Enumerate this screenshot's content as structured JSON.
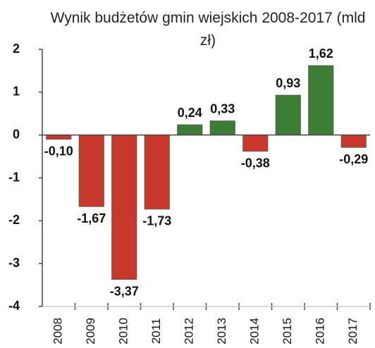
{
  "chart_data": {
    "type": "bar",
    "title": "Wynik budżetów gmin wiejskich 2008-2017 (mld zł)",
    "categories": [
      "2008",
      "2009",
      "2010",
      "2011",
      "2012",
      "2013",
      "2014",
      "2015",
      "2016",
      "2017"
    ],
    "values": [
      -0.1,
      -1.67,
      -3.37,
      -1.73,
      0.24,
      0.33,
      -0.38,
      0.93,
      1.62,
      -0.29
    ],
    "value_labels": [
      "-0,10",
      "-1,67",
      "-3,37",
      "-1,73",
      "0,24",
      "0,33",
      "-0,38",
      "0,93",
      "1,62",
      "-0,29"
    ],
    "positive_color": "#3e7d35",
    "negative_color": "#c8392d",
    "ylim": [
      -4,
      2
    ],
    "yticks": [
      2,
      1,
      0,
      -1,
      -2,
      -3,
      -4
    ]
  }
}
